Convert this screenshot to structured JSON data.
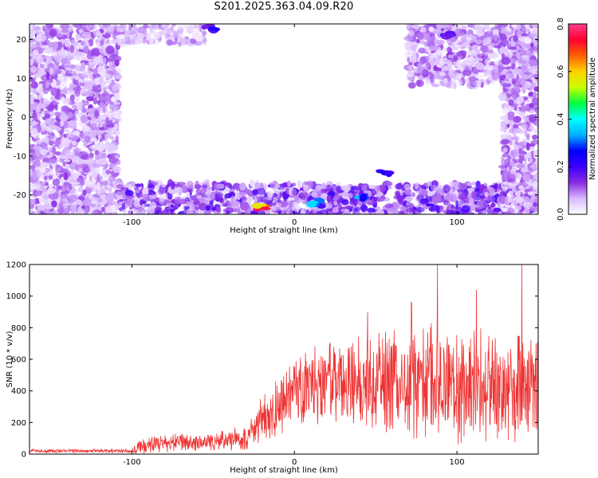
{
  "title": "S201.2025.363.04.09.R20",
  "chart_data": [
    {
      "type": "heatmap",
      "xlabel": "Height of straight line (km)",
      "ylabel": "Frequency (Hz)",
      "xlim": [
        -163,
        150
      ],
      "ylim": [
        -25,
        24
      ],
      "x_ticks": [
        -100,
        0,
        100
      ],
      "y_ticks": [
        20,
        10,
        0,
        -10,
        -20
      ],
      "x_tick_labels": [
        "-100",
        "0",
        "100"
      ],
      "y_tick_labels": [
        "20",
        "10",
        "0",
        "-10",
        "-20"
      ],
      "colorbar": {
        "label": "Normalized spectral amplitude",
        "range": [
          0.0,
          0.8
        ],
        "ticks": [
          0.0,
          0.2,
          0.4,
          0.6,
          0.8
        ],
        "tick_labels": [
          "0.0",
          "0.2",
          "0.4",
          "0.6",
          "0.8"
        ],
        "colormap": [
          "#ffffff",
          "#d9b8ff",
          "#8a2be2",
          "#3a00ff",
          "#0000ff",
          "#00b0ff",
          "#00ffff",
          "#00ff40",
          "#c8ff00",
          "#ffd000",
          "#ff6000",
          "#ff0030",
          "#ff3d8a"
        ]
      },
      "regions": [
        {
          "x": [
            -163,
            -108
          ],
          "y": [
            -25,
            24
          ],
          "level": 0.1
        },
        {
          "x": [
            -108,
            150
          ],
          "y": [
            -25,
            -17
          ],
          "level": 0.15
        },
        {
          "x": [
            -108,
            -55
          ],
          "y": [
            19,
            24
          ],
          "level": 0.08
        },
        {
          "x": [
            70,
            150
          ],
          "y": [
            8,
            24
          ],
          "level": 0.1
        },
        {
          "x": [
            128,
            150
          ],
          "y": [
            -25,
            24
          ],
          "level": 0.1
        }
      ],
      "hotspots": [
        {
          "x": -20,
          "y": -23,
          "value": 0.8
        },
        {
          "x": 55,
          "y": -14,
          "value": 0.25
        },
        {
          "x": 95,
          "y": 21,
          "value": 0.25
        },
        {
          "x": -52,
          "y": 23,
          "value": 0.25
        },
        {
          "x": 13,
          "y": -22,
          "value": 0.4
        },
        {
          "x": 42,
          "y": -21,
          "value": 0.35
        }
      ],
      "grid": false
    },
    {
      "type": "line",
      "xlabel": "Height of straight line (km)",
      "ylabel": "SNR (10 * v/v)",
      "xlim": [
        -163,
        150
      ],
      "ylim": [
        0,
        1200
      ],
      "x_ticks": [
        -100,
        0,
        100
      ],
      "y_ticks": [
        0,
        200,
        400,
        600,
        800,
        1000,
        1200
      ],
      "x_tick_labels": [
        "-100",
        "0",
        "100"
      ],
      "y_tick_labels": [
        "0",
        "200",
        "400",
        "600",
        "800",
        "1000",
        "1200"
      ],
      "color": "#ee3333",
      "envelope": [
        {
          "x": -163,
          "mean": 20,
          "spread": 12
        },
        {
          "x": -100,
          "mean": 20,
          "spread": 12
        },
        {
          "x": -95,
          "mean": 45,
          "spread": 50
        },
        {
          "x": -80,
          "mean": 70,
          "spread": 60
        },
        {
          "x": -60,
          "mean": 75,
          "spread": 60
        },
        {
          "x": -40,
          "mean": 90,
          "spread": 70
        },
        {
          "x": -30,
          "mean": 110,
          "spread": 90
        },
        {
          "x": -20,
          "mean": 230,
          "spread": 150
        },
        {
          "x": -10,
          "mean": 300,
          "spread": 200
        },
        {
          "x": 0,
          "mean": 380,
          "spread": 220
        },
        {
          "x": 20,
          "mean": 450,
          "spread": 280
        },
        {
          "x": 40,
          "mean": 450,
          "spread": 300
        },
        {
          "x": 60,
          "mean": 460,
          "spread": 330
        },
        {
          "x": 80,
          "mean": 460,
          "spread": 380
        },
        {
          "x": 100,
          "mean": 430,
          "spread": 380
        },
        {
          "x": 120,
          "mean": 420,
          "spread": 370
        },
        {
          "x": 150,
          "mean": 400,
          "spread": 350
        }
      ],
      "peaks": [
        {
          "x": 88,
          "y": 1200
        },
        {
          "x": 140,
          "y": 1200
        },
        {
          "x": 112,
          "y": 1040
        },
        {
          "x": 72,
          "y": 960
        },
        {
          "x": 45,
          "y": 900
        }
      ],
      "grid": false
    }
  ]
}
